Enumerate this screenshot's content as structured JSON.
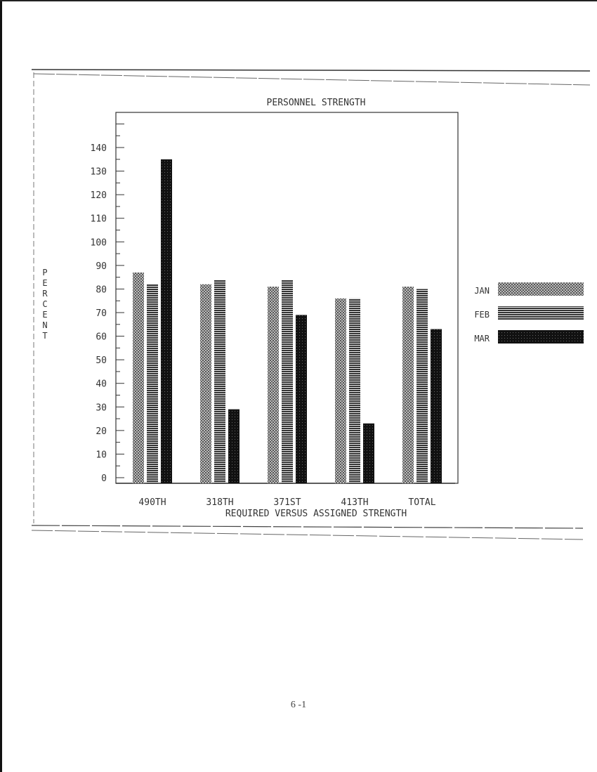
{
  "chart_data": {
    "type": "bar",
    "title": "PERSONNEL STRENGTH",
    "xlabel": "REQUIRED VERSUS ASSIGNED STRENGTH",
    "ylabel": "PERCENT",
    "categories": [
      "490TH",
      "318TH",
      "371ST",
      "413TH",
      "TOTAL"
    ],
    "series": [
      {
        "name": "JAN",
        "pattern": "dots",
        "values": [
          87,
          82,
          81,
          76,
          81
        ]
      },
      {
        "name": "FEB",
        "pattern": "horizontal-lines",
        "values": [
          82,
          84,
          84,
          76,
          80
        ]
      },
      {
        "name": "MAR",
        "pattern": "solid-dark",
        "values": [
          135,
          29,
          69,
          23,
          63
        ]
      }
    ],
    "ylim": [
      0,
      155
    ],
    "yticks": [
      0,
      10,
      20,
      30,
      40,
      50,
      60,
      70,
      80,
      90,
      100,
      110,
      120,
      130,
      140
    ],
    "grid": false,
    "legend_placement": "right"
  },
  "page_number": "6 -1"
}
